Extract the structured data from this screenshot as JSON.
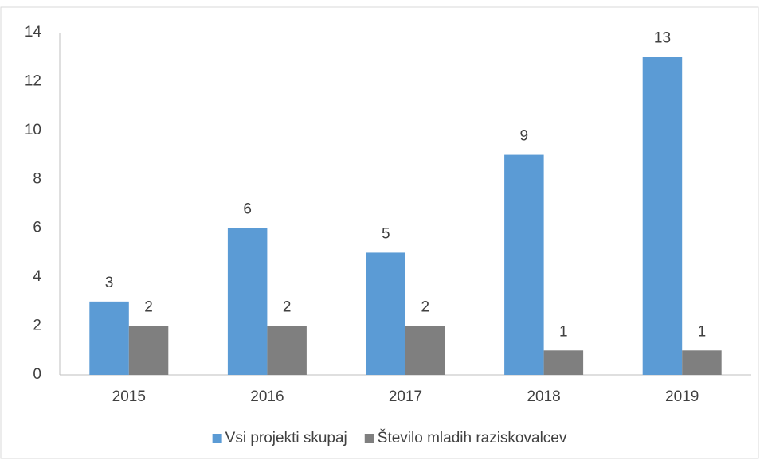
{
  "chart_data": {
    "type": "bar",
    "categories": [
      "2015",
      "2016",
      "2017",
      "2018",
      "2019"
    ],
    "series": [
      {
        "name": "Vsi projekti skupaj",
        "color": "#5b9bd5",
        "values": [
          3,
          6,
          5,
          9,
          13
        ]
      },
      {
        "name": "Število mladih raziskovalcev",
        "color": "#7f7f7f",
        "values": [
          2,
          2,
          2,
          1,
          1
        ]
      }
    ],
    "ylim": [
      0,
      14
    ],
    "yticks": [
      0,
      2,
      4,
      6,
      8,
      10,
      12,
      14
    ],
    "grid": false,
    "legend": "bottom"
  }
}
